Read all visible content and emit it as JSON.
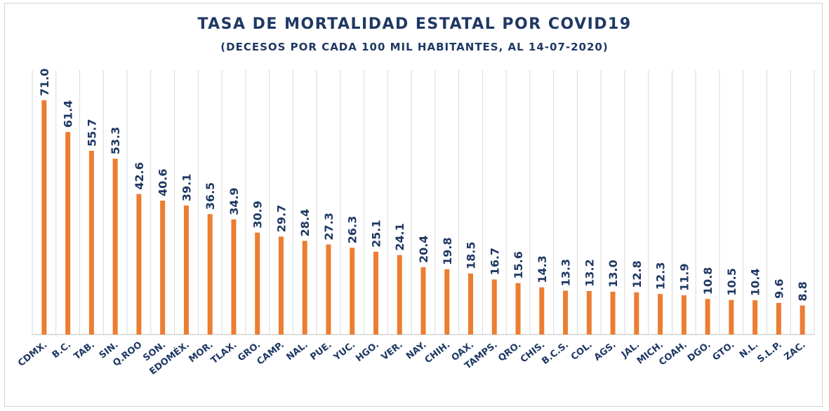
{
  "chart_data": {
    "type": "bar",
    "title": "TASA DE MORTALIDAD ESTATAL POR COVID19",
    "subtitle": "(DECESOS POR CADA 100 MIL HABITANTES, AL 14-07-2020)",
    "xlabel": "",
    "ylabel": "",
    "ylim": [
      0,
      71.0
    ],
    "grid": "vertical",
    "legend": "none",
    "colors": {
      "bar": "#ed7d31",
      "text": "#1f3864",
      "grid": "#d9d9d9",
      "axis": "#bfbfbf"
    },
    "categories": [
      "CDMX.",
      "B.C.",
      "TAB.",
      "SIN.",
      "Q.ROO",
      "SON.",
      "EDOMÉX.",
      "MOR.",
      "TLAX.",
      "GRO.",
      "CAMP.",
      "NAL.",
      "PUE.",
      "YUC.",
      "HGO.",
      "VER.",
      "NAY.",
      "CHIH.",
      "OAX.",
      "TAMPS.",
      "QRO.",
      "CHIS.",
      "B.C.S.",
      "COL.",
      "AGS.",
      "JAL.",
      "MICH.",
      "COAH.",
      "DGO.",
      "GTO.",
      "N.L.",
      "S.L.P.",
      "ZAC."
    ],
    "values": [
      71.0,
      61.4,
      55.7,
      53.3,
      42.6,
      40.6,
      39.1,
      36.5,
      34.9,
      30.9,
      29.7,
      28.4,
      27.3,
      26.3,
      25.1,
      24.1,
      20.4,
      19.8,
      18.5,
      16.7,
      15.6,
      14.3,
      13.3,
      13.2,
      13.0,
      12.8,
      12.3,
      11.9,
      10.8,
      10.5,
      10.4,
      9.6,
      8.8
    ],
    "value_labels": [
      "71.0",
      "61.4",
      "55.7",
      "53.3",
      "42.6",
      "40.6",
      "39.1",
      "36.5",
      "34.9",
      "30.9",
      "29.7",
      "28.4",
      "27.3",
      "26.3",
      "25.1",
      "24.1",
      "20.4",
      "19.8",
      "18.5",
      "16.7",
      "15.6",
      "14.3",
      "13.3",
      "13.2",
      "13.0",
      "12.8",
      "12.3",
      "11.9",
      "10.8",
      "10.5",
      "10.4",
      "9.6",
      "8.8"
    ]
  }
}
